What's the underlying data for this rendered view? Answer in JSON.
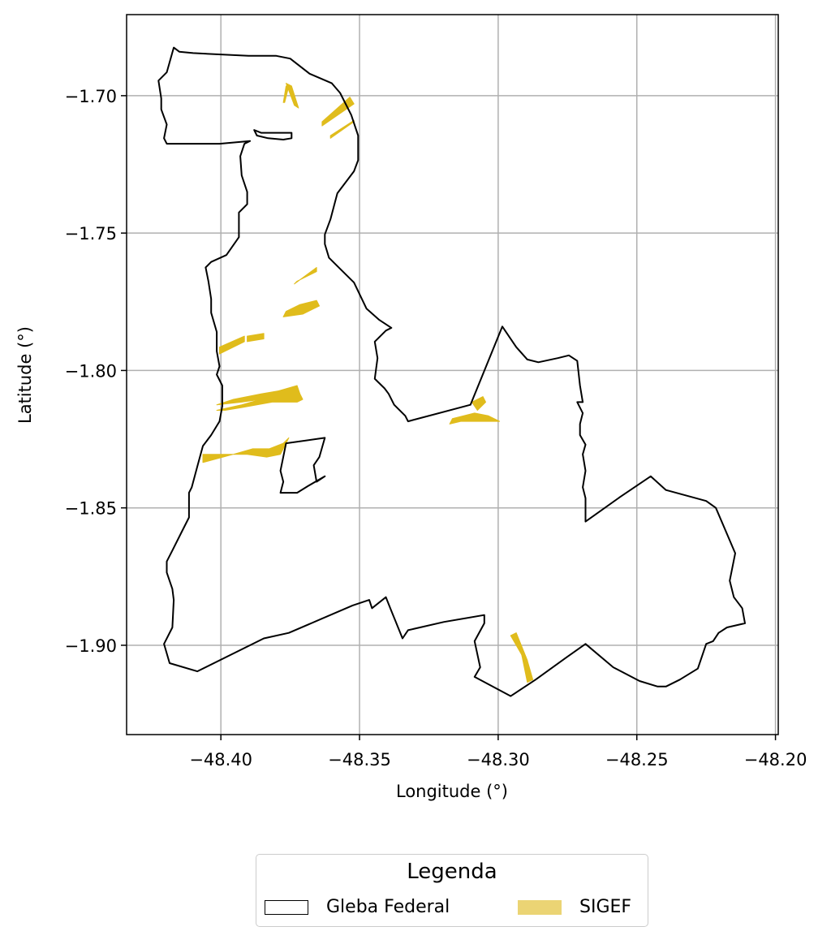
{
  "map": {
    "x_axis": {
      "label": "Longitude (°)",
      "ticks": [
        "−48.40",
        "−48.35",
        "−48.30",
        "−48.25",
        "−48.20"
      ],
      "tick_values": [
        -48.4,
        -48.35,
        -48.3,
        -48.25,
        -48.2
      ],
      "range": [
        -48.434,
        -48.199
      ]
    },
    "y_axis": {
      "label": "Latitude (°)",
      "ticks": [
        "−1.70",
        "−1.75",
        "−1.80",
        "−1.85",
        "−1.90"
      ],
      "tick_values": [
        -1.7,
        -1.75,
        -1.8,
        -1.85,
        -1.9
      ],
      "range": [
        -1.9325,
        -1.6705
      ]
    },
    "grid": true,
    "colors": {
      "gleba_outline": "#000000",
      "sigef_fill": "#e0bc1c",
      "grid": "#b0b0b0"
    },
    "layers": {
      "gleba_federal": {
        "rings": [
          [
            [
              -48.4225,
              -1.6945
            ],
            [
              -48.4195,
              -1.6915
            ],
            [
              -48.417,
              -1.6825
            ],
            [
              -48.415,
              -1.684
            ],
            [
              -48.41,
              -1.6845
            ],
            [
              -48.39,
              -1.6855
            ],
            [
              -48.38,
              -1.6855
            ],
            [
              -48.375,
              -1.6865
            ],
            [
              -48.368,
              -1.692
            ],
            [
              -48.36,
              -1.6955
            ],
            [
              -48.357,
              -1.699
            ],
            [
              -48.353,
              -1.707
            ],
            [
              -48.3505,
              -1.7145
            ],
            [
              -48.3505,
              -1.7235
            ],
            [
              -48.352,
              -1.7275
            ],
            [
              -48.358,
              -1.7355
            ],
            [
              -48.3605,
              -1.745
            ],
            [
              -48.3625,
              -1.7505
            ],
            [
              -48.3625,
              -1.754
            ],
            [
              -48.361,
              -1.759
            ],
            [
              -48.357,
              -1.763
            ],
            [
              -48.352,
              -1.768
            ],
            [
              -48.3475,
              -1.7775
            ],
            [
              -48.343,
              -1.7815
            ],
            [
              -48.3385,
              -1.7845
            ],
            [
              -48.3405,
              -1.7855
            ],
            [
              -48.3445,
              -1.7895
            ],
            [
              -48.3435,
              -1.7955
            ],
            [
              -48.3445,
              -1.803
            ],
            [
              -48.341,
              -1.8065
            ],
            [
              -48.3395,
              -1.8085
            ],
            [
              -48.3375,
              -1.8125
            ],
            [
              -48.3335,
              -1.8165
            ],
            [
              -48.3325,
              -1.8185
            ],
            [
              -48.31,
              -1.8125
            ],
            [
              -48.2985,
              -1.784
            ],
            [
              -48.2935,
              -1.7915
            ],
            [
              -48.2895,
              -1.796
            ],
            [
              -48.2855,
              -1.797
            ],
            [
              -48.2785,
              -1.7955
            ],
            [
              -48.2745,
              -1.7945
            ],
            [
              -48.2715,
              -1.7965
            ],
            [
              -48.2705,
              -1.8055
            ],
            [
              -48.2695,
              -1.8115
            ],
            [
              -48.2715,
              -1.8115
            ],
            [
              -48.2695,
              -1.8155
            ],
            [
              -48.2705,
              -1.8195
            ],
            [
              -48.2705,
              -1.8235
            ],
            [
              -48.2685,
              -1.827
            ],
            [
              -48.2695,
              -1.8305
            ],
            [
              -48.2685,
              -1.8365
            ],
            [
              -48.2695,
              -1.8425
            ],
            [
              -48.2685,
              -1.8465
            ],
            [
              -48.2685,
              -1.855
            ],
            [
              -48.256,
              -1.846
            ],
            [
              -48.245,
              -1.8385
            ],
            [
              -48.2395,
              -1.8435
            ],
            [
              -48.225,
              -1.8475
            ],
            [
              -48.2215,
              -1.85
            ],
            [
              -48.2145,
              -1.8665
            ],
            [
              -48.2165,
              -1.8765
            ],
            [
              -48.215,
              -1.8825
            ],
            [
              -48.212,
              -1.8865
            ],
            [
              -48.211,
              -1.892
            ],
            [
              -48.2175,
              -1.8935
            ],
            [
              -48.2205,
              -1.8955
            ],
            [
              -48.2225,
              -1.8985
            ],
            [
              -48.225,
              -1.8995
            ],
            [
              -48.228,
              -1.9085
            ],
            [
              -48.2345,
              -1.9125
            ],
            [
              -48.2395,
              -1.915
            ],
            [
              -48.2425,
              -1.915
            ],
            [
              -48.249,
              -1.913
            ],
            [
              -48.2585,
              -1.908
            ],
            [
              -48.2685,
              -1.8995
            ],
            [
              -48.2755,
              -1.9045
            ],
            [
              -48.2865,
              -1.9125
            ],
            [
              -48.2955,
              -1.9185
            ],
            [
              -48.3085,
              -1.9115
            ],
            [
              -48.3065,
              -1.908
            ],
            [
              -48.3085,
              -1.8985
            ],
            [
              -48.305,
              -1.892
            ],
            [
              -48.305,
              -1.889
            ],
            [
              -48.3195,
              -1.8915
            ],
            [
              -48.3325,
              -1.8945
            ],
            [
              -48.3345,
              -1.8975
            ],
            [
              -48.3385,
              -1.8875
            ],
            [
              -48.3405,
              -1.8825
            ],
            [
              -48.3455,
              -1.8865
            ],
            [
              -48.3465,
              -1.8835
            ],
            [
              -48.3525,
              -1.8855
            ],
            [
              -48.3755,
              -1.8955
            ],
            [
              -48.3845,
              -1.8975
            ],
            [
              -48.4085,
              -1.9095
            ],
            [
              -48.4185,
              -1.9065
            ],
            [
              -48.4205,
              -1.8995
            ],
            [
              -48.4175,
              -1.8935
            ],
            [
              -48.417,
              -1.8835
            ],
            [
              -48.4175,
              -1.8795
            ],
            [
              -48.4195,
              -1.8735
            ],
            [
              -48.4195,
              -1.8695
            ],
            [
              -48.4175,
              -1.8655
            ],
            [
              -48.414,
              -1.8585
            ],
            [
              -48.4115,
              -1.8535
            ],
            [
              -48.4115,
              -1.8445
            ],
            [
              -48.4105,
              -1.8425
            ],
            [
              -48.4085,
              -1.835
            ],
            [
              -48.4065,
              -1.8275
            ],
            [
              -48.4035,
              -1.8235
            ],
            [
              -48.4005,
              -1.8185
            ],
            [
              -48.3995,
              -1.813
            ],
            [
              -48.3995,
              -1.8055
            ],
            [
              -48.4015,
              -1.8015
            ],
            [
              -48.4005,
              -1.7985
            ],
            [
              -48.4015,
              -1.793
            ],
            [
              -48.4015,
              -1.786
            ],
            [
              -48.4035,
              -1.779
            ],
            [
              -48.4035,
              -1.774
            ],
            [
              -48.4045,
              -1.7675
            ],
            [
              -48.4055,
              -1.7625
            ],
            [
              -48.4035,
              -1.7605
            ],
            [
              -48.398,
              -1.758
            ],
            [
              -48.3935,
              -1.7515
            ],
            [
              -48.3935,
              -1.7425
            ],
            [
              -48.3905,
              -1.7395
            ],
            [
              -48.3905,
              -1.735
            ],
            [
              -48.3925,
              -1.729
            ],
            [
              -48.393,
              -1.722
            ],
            [
              -48.3915,
              -1.7175
            ],
            [
              -48.3895,
              -1.7165
            ],
            [
              -48.4005,
              -1.7175
            ],
            [
              -48.4195,
              -1.7175
            ],
            [
              -48.4205,
              -1.7155
            ],
            [
              -48.4195,
              -1.7105
            ],
            [
              -48.4215,
              -1.705
            ],
            [
              -48.4215,
              -1.701
            ],
            [
              -48.4225,
              -1.6945
            ]
          ],
          [
            [
              -48.388,
              -1.7125
            ],
            [
              -48.387,
              -1.7145
            ],
            [
              -48.383,
              -1.7155
            ],
            [
              -48.3775,
              -1.716
            ],
            [
              -48.3745,
              -1.7155
            ],
            [
              -48.3745,
              -1.7135
            ],
            [
              -48.3835,
              -1.7135
            ],
            [
              -48.3855,
              -1.7135
            ],
            [
              -48.388,
              -1.7125
            ]
          ],
          [
            [
              -48.3765,
              -1.8265
            ],
            [
              -48.3625,
              -1.8245
            ],
            [
              -48.3645,
              -1.8315
            ],
            [
              -48.3665,
              -1.8345
            ],
            [
              -48.3655,
              -1.8405
            ],
            [
              -48.3625,
              -1.8385
            ],
            [
              -48.3685,
              -1.842
            ],
            [
              -48.3725,
              -1.8445
            ],
            [
              -48.3785,
              -1.8445
            ],
            [
              -48.3775,
              -1.8405
            ],
            [
              -48.3785,
              -1.8365
            ],
            [
              -48.3765,
              -1.8265
            ]
          ]
        ]
      },
      "sigef": {
        "polygons": [
          [
            [
              -48.3745,
              -1.6965
            ],
            [
              -48.372,
              -1.7045
            ],
            [
              -48.3735,
              -1.7035
            ],
            [
              -48.3765,
              -1.6955
            ]
          ],
          [
            [
              -48.3755,
              -1.6965
            ],
            [
              -48.3765,
              -1.6965
            ],
            [
              -48.3775,
              -1.7025
            ],
            [
              -48.377,
              -1.7025
            ]
          ],
          [
            [
              -48.3635,
              -1.711
            ],
            [
              -48.3635,
              -1.7095
            ],
            [
              -48.3535,
              -1.7005
            ],
            [
              -48.352,
              -1.703
            ]
          ],
          [
            [
              -48.3605,
              -1.7145
            ],
            [
              -48.352,
              -1.709
            ],
            [
              -48.352,
              -1.7095
            ],
            [
              -48.3605,
              -1.7155
            ]
          ],
          [
            [
              -48.3725,
              -1.7675
            ],
            [
              -48.3655,
              -1.764
            ],
            [
              -48.3655,
              -1.7625
            ],
            [
              -48.3735,
              -1.7685
            ]
          ],
          [
            [
              -48.3775,
              -1.7805
            ],
            [
              -48.3705,
              -1.7795
            ],
            [
              -48.3645,
              -1.7765
            ],
            [
              -48.3655,
              -1.7745
            ],
            [
              -48.3715,
              -1.776
            ],
            [
              -48.3765,
              -1.7785
            ]
          ],
          [
            [
              -48.4005,
              -1.794
            ],
            [
              -48.3915,
              -1.7895
            ],
            [
              -48.3915,
              -1.7875
            ],
            [
              -48.4005,
              -1.7915
            ]
          ],
          [
            [
              -48.3905,
              -1.7895
            ],
            [
              -48.3845,
              -1.7885
            ],
            [
              -48.3845,
              -1.7865
            ],
            [
              -48.3905,
              -1.7875
            ]
          ],
          [
            [
              -48.4015,
              -1.8145
            ],
            [
              -48.3925,
              -1.8125
            ],
            [
              -48.3855,
              -1.8105
            ],
            [
              -48.3805,
              -1.8095
            ],
            [
              -48.3795,
              -1.8075
            ],
            [
              -48.3725,
              -1.8055
            ],
            [
              -48.3715,
              -1.8085
            ],
            [
              -48.3705,
              -1.8105
            ],
            [
              -48.3725,
              -1.8115
            ],
            [
              -48.3815,
              -1.8115
            ],
            [
              -48.3925,
              -1.8135
            ],
            [
              -48.3985,
              -1.8145
            ]
          ],
          [
            [
              -48.4015,
              -1.8125
            ],
            [
              -48.3955,
              -1.8105
            ],
            [
              -48.3855,
              -1.8085
            ],
            [
              -48.3795,
              -1.8075
            ],
            [
              -48.3805,
              -1.8095
            ],
            [
              -48.3855,
              -1.8105
            ],
            [
              -48.3925,
              -1.8115
            ]
          ],
          [
            [
              -48.4065,
              -1.8335
            ],
            [
              -48.3955,
              -1.8305
            ],
            [
              -48.3885,
              -1.8285
            ],
            [
              -48.3825,
              -1.8285
            ],
            [
              -48.3775,
              -1.8265
            ],
            [
              -48.3755,
              -1.8245
            ],
            [
              -48.3765,
              -1.8265
            ],
            [
              -48.3785,
              -1.8305
            ],
            [
              -48.3835,
              -1.8315
            ],
            [
              -48.3905,
              -1.8305
            ],
            [
              -48.4065,
              -1.8305
            ]
          ],
          [
            [
              -48.3175,
              -1.8195
            ],
            [
              -48.3165,
              -1.8175
            ],
            [
              -48.3085,
              -1.8155
            ],
            [
              -48.3035,
              -1.8165
            ],
            [
              -48.2995,
              -1.8185
            ],
            [
              -48.3055,
              -1.8185
            ],
            [
              -48.3135,
              -1.8185
            ]
          ],
          [
            [
              -48.3095,
              -1.8115
            ],
            [
              -48.3055,
              -1.8095
            ],
            [
              -48.3045,
              -1.8115
            ],
            [
              -48.3075,
              -1.8145
            ]
          ],
          [
            [
              -48.2935,
              -1.8955
            ],
            [
              -48.2895,
              -1.9055
            ],
            [
              -48.2875,
              -1.9125
            ],
            [
              -48.2895,
              -1.9135
            ],
            [
              -48.2915,
              -1.9035
            ],
            [
              -48.2955,
              -1.8965
            ]
          ],
          [
            [
              -48.2955,
              -1.8965
            ],
            [
              -48.2935,
              -1.8955
            ],
            [
              -48.2895,
              -1.9055
            ],
            [
              -48.2905,
              -1.9065
            ],
            [
              -48.2925,
              -1.9005
            ]
          ]
        ]
      }
    }
  },
  "legend": {
    "title": "Legenda",
    "entries": [
      {
        "label": "Gleba Federal",
        "style": "outline"
      },
      {
        "label": "SIGEF",
        "style": "fill"
      }
    ],
    "placement": "bottom-center"
  }
}
